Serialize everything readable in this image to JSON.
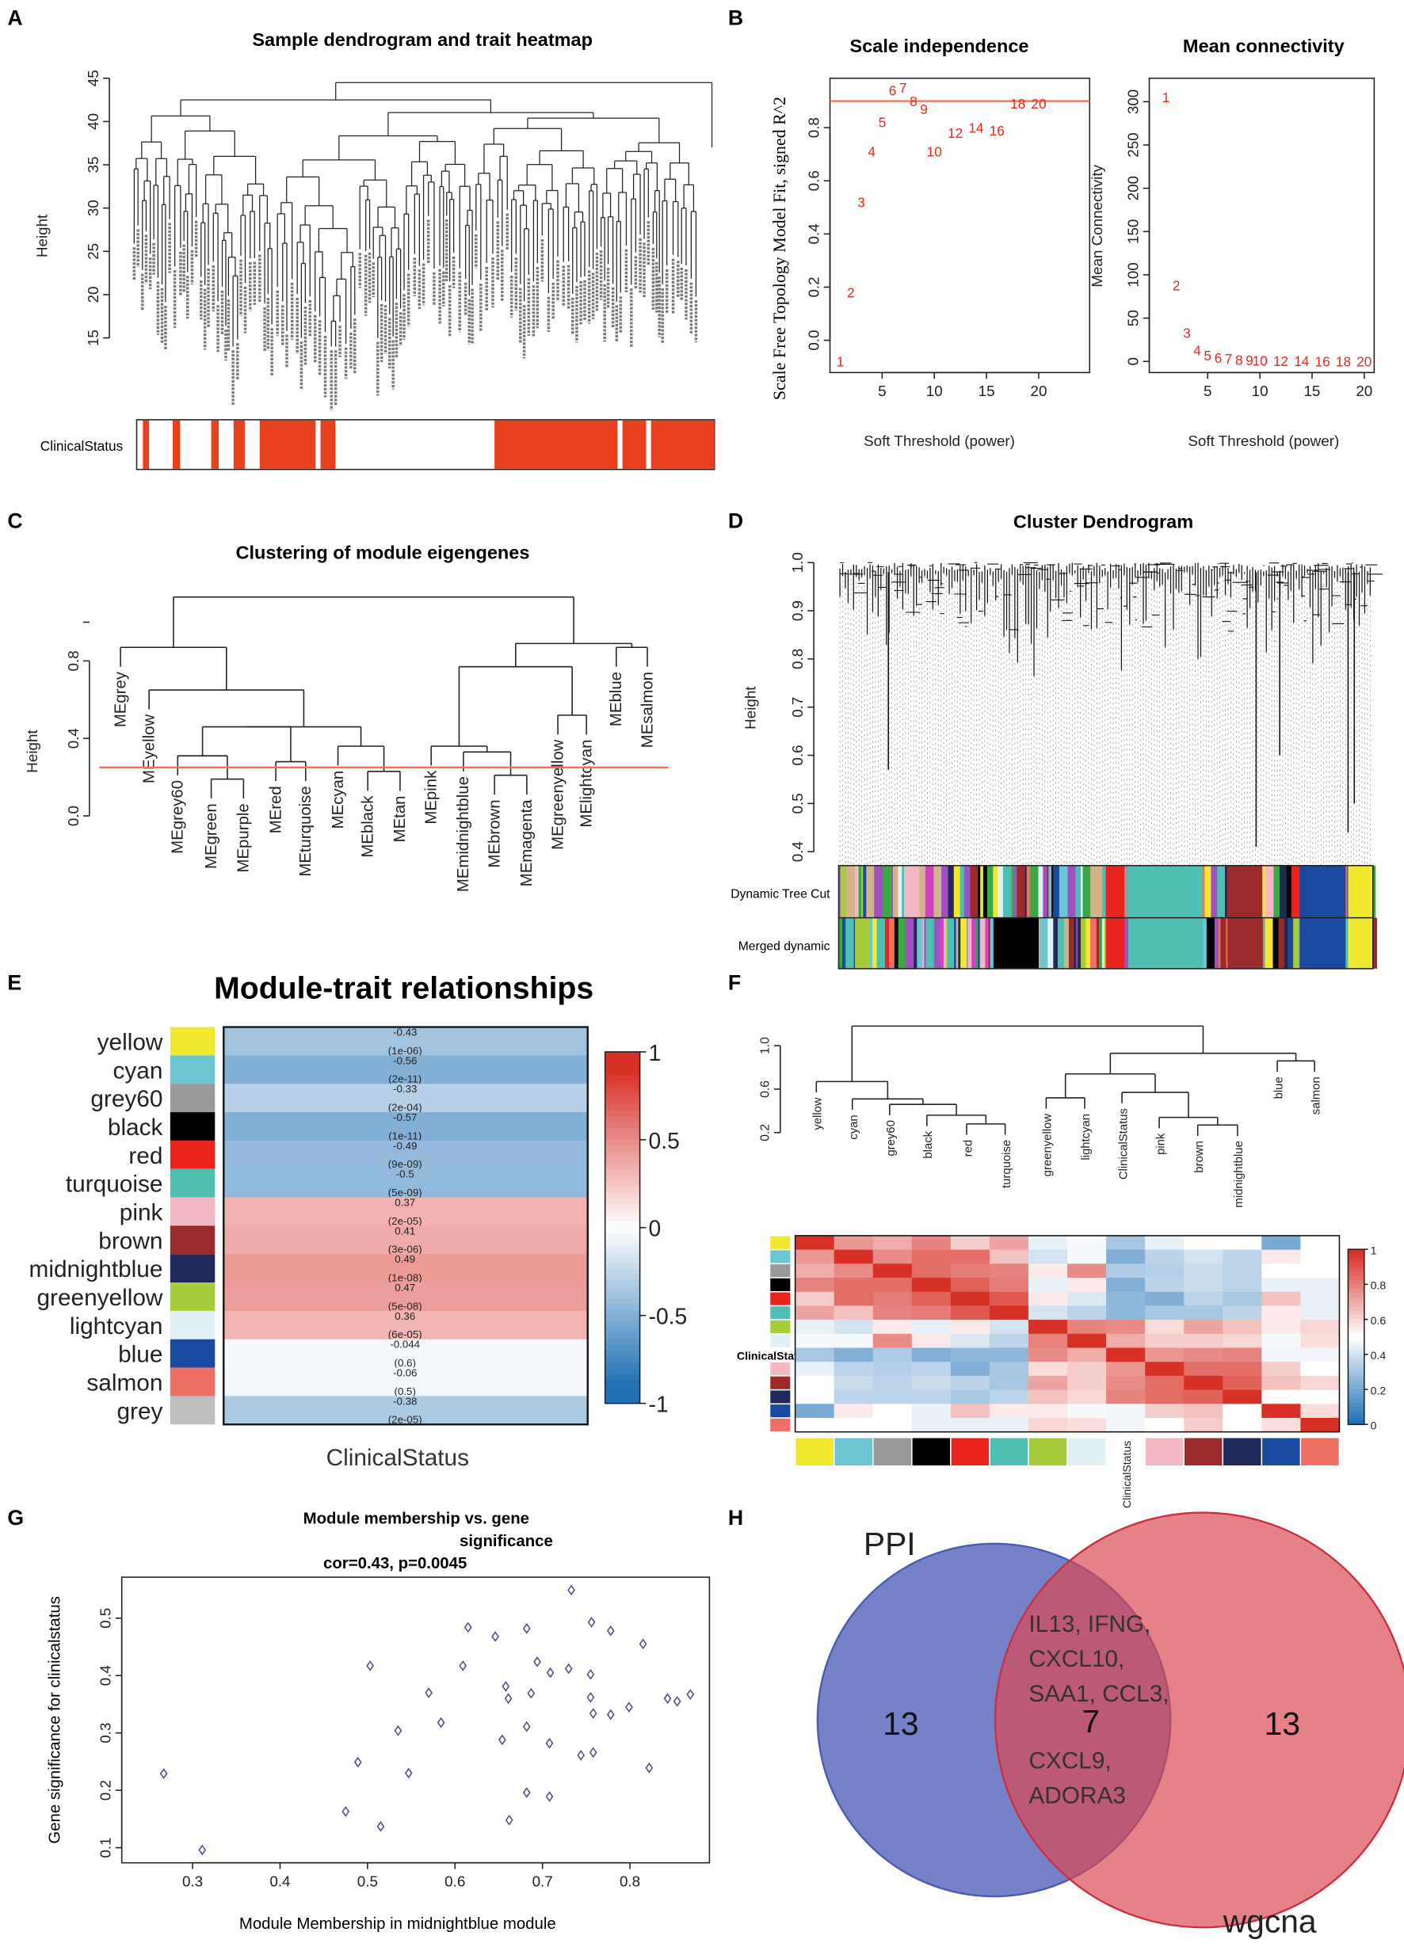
{
  "panel_labels": [
    "A",
    "B",
    "C",
    "D",
    "E",
    "F",
    "G",
    "H"
  ],
  "colors": {
    "yellow": "#f2e830",
    "cyan": "#6cc5d3",
    "grey60": "#999999",
    "black": "#000000",
    "red": "#e8241c",
    "turquoise": "#4fbfb4",
    "pink": "#f4b8c4",
    "brown": "#9b2a2a",
    "midnightblue": "#1f2a5a",
    "greenyellow": "#a7cc3a",
    "lightcyan": "#dff1f5",
    "blue": "#1a4aa0",
    "salmon": "#ee6f64",
    "grey": "#bebebe",
    "green": "#3aa845",
    "purple": "#a050c0",
    "tan": "#d2b48c",
    "magenta": "#d040c0",
    "trait_red": "#e8401c",
    "threshold_line": "#f07050",
    "scatter_point": "#5a4b8a"
  },
  "chart_data": [
    {
      "panel": "A",
      "type": "dendrogram",
      "title": "Sample dendrogram and trait heatmap",
      "ylabel": "Height",
      "ylim": [
        15,
        45
      ],
      "yticks": [
        15,
        20,
        25,
        30,
        35,
        40,
        45
      ],
      "trait_label": "ClinicalStatus"
    },
    {
      "panel": "B1",
      "type": "scatter",
      "title": "Scale independence",
      "xlabel": "Soft Threshold (power)",
      "ylabel": "Scale Free Topology Model Fit, signed R^2",
      "xticks": [
        5,
        10,
        15,
        20
      ],
      "yticks": [
        0.0,
        0.2,
        0.4,
        0.6,
        0.8
      ],
      "threshold": 0.9,
      "x": [
        1,
        2,
        3,
        4,
        5,
        6,
        7,
        8,
        9,
        10,
        12,
        14,
        16,
        18,
        20
      ],
      "y": [
        -0.08,
        0.18,
        0.52,
        0.71,
        0.82,
        0.94,
        0.95,
        0.9,
        0.87,
        0.71,
        0.78,
        0.8,
        0.79,
        0.89,
        0.89
      ]
    },
    {
      "panel": "B2",
      "type": "scatter",
      "title": "Mean connectivity",
      "xlabel": "Soft Threshold (power)",
      "ylabel": "Mean Connectivity",
      "xticks": [
        5,
        10,
        15,
        20
      ],
      "yticks": [
        0,
        50,
        100,
        150,
        200,
        250,
        300
      ],
      "x": [
        1,
        2,
        3,
        4,
        5,
        6,
        7,
        8,
        9,
        10,
        12,
        14,
        16,
        18,
        20
      ],
      "y": [
        305,
        88,
        33,
        13,
        7,
        4,
        3,
        2,
        1.5,
        1,
        0.5,
        0.3,
        0.2,
        0.1,
        0.1
      ]
    },
    {
      "panel": "C",
      "type": "dendrogram",
      "title": "Clustering of module eigengenes",
      "ylabel": "Height",
      "yticks": [
        0.0,
        0.4,
        0.8
      ],
      "cut_height": 0.25,
      "leaves": [
        "MEgrey",
        "MEyellow",
        "MEgrey60",
        "MEgreen",
        "MEpurple",
        "MEred",
        "MEturquoise",
        "MEcyan",
        "MEblack",
        "MEtan",
        "MEpink",
        "MEmidnightblue",
        "MEbrown",
        "MEmagenta",
        "MEgreenyellow",
        "MElightcyan",
        "MEblue",
        "MEsalmon"
      ],
      "merges": [
        [
          -4,
          -5,
          0.19
        ],
        [
          -3,
          1,
          0.31
        ],
        [
          -6,
          -7,
          0.28
        ],
        [
          -9,
          -10,
          0.23
        ],
        [
          -8,
          4,
          0.36
        ],
        [
          2,
          3,
          0.46
        ],
        [
          6,
          5,
          0.46
        ],
        [
          -2,
          7,
          0.65
        ],
        [
          -1,
          8,
          0.87
        ],
        [
          -13,
          -14,
          0.21
        ],
        [
          -12,
          10,
          0.33
        ],
        [
          -11,
          11,
          0.36
        ],
        [
          -15,
          -16,
          0.52
        ],
        [
          12,
          13,
          0.77
        ],
        [
          -17,
          -18,
          0.87
        ],
        [
          14,
          15,
          0.89
        ],
        [
          9,
          16,
          1.13
        ]
      ]
    },
    {
      "panel": "D",
      "type": "dendrogram",
      "title": "Cluster Dendrogram",
      "ylabel": "Height",
      "yticks": [
        0.4,
        0.5,
        0.6,
        0.7,
        0.8,
        0.9,
        1.0
      ],
      "bar_labels": [
        "Dynamic Tree Cut",
        "Merged dynamic"
      ]
    },
    {
      "panel": "E",
      "type": "heatmap",
      "title": "Module-trait relationships",
      "xlabel": "ClinicalStatus",
      "rows": [
        "yellow",
        "cyan",
        "grey60",
        "black",
        "red",
        "turquoise",
        "pink",
        "brown",
        "midnightblue",
        "greenyellow",
        "lightcyan",
        "blue",
        "salmon",
        "grey"
      ],
      "cor": [
        -0.43,
        -0.56,
        -0.33,
        -0.57,
        -0.49,
        -0.5,
        0.37,
        0.41,
        0.49,
        0.47,
        0.36,
        -0.044,
        -0.06,
        -0.38
      ],
      "cor_labels": [
        "-0.43",
        "-0.56",
        "-0.33",
        "-0.57",
        "-0.49",
        "-0.5",
        "0.37",
        "0.41",
        "0.49",
        "0.47",
        "0.36",
        "-0.044",
        "-0.06",
        "-0.38"
      ],
      "p_labels": [
        "(1e-06)",
        "(2e-11)",
        "(2e-04)",
        "(1e-11)",
        "(9e-09)",
        "(5e-09)",
        "(2e-05)",
        "(3e-06)",
        "(1e-08)",
        "(5e-08)",
        "(6e-05)",
        "(0.6)",
        "(0.5)",
        "(2e-05)"
      ],
      "colorbar_ticks": [
        "1",
        "0.5",
        "0",
        "-0.5",
        "-1"
      ]
    },
    {
      "panel": "F",
      "type": "heatmap",
      "yticks": [
        0.2,
        0.6,
        1.0
      ],
      "leaves": [
        "yellow",
        "cyan",
        "grey60",
        "black",
        "red",
        "turquoise",
        "greenyellow",
        "lightcyan",
        "ClinicalStatus",
        "pink",
        "brown",
        "midnightblue",
        "blue",
        "salmon"
      ],
      "merges": [
        [
          -5,
          -6,
          0.28
        ],
        [
          -4,
          1,
          0.36
        ],
        [
          -3,
          2,
          0.46
        ],
        [
          -2,
          3,
          0.51
        ],
        [
          -1,
          4,
          0.67
        ],
        [
          -7,
          -8,
          0.52
        ],
        [
          -11,
          -12,
          0.27
        ],
        [
          -10,
          7,
          0.34
        ],
        [
          -9,
          8,
          0.57
        ],
        [
          6,
          9,
          0.74
        ],
        [
          -13,
          -14,
          0.86
        ],
        [
          10,
          11,
          0.93
        ],
        [
          5,
          12,
          1.18
        ]
      ],
      "row_label": "ClinicalStatus",
      "colorbar_ticks": [
        "1",
        "0.8",
        "0.6",
        "0.4",
        "0.2",
        "0"
      ],
      "matrix": [
        [
          1,
          0.75,
          0.7,
          0.8,
          0.62,
          0.72,
          0.45,
          0.48,
          0.3,
          0.45,
          0.5,
          0.5,
          0.2,
          0.5
        ],
        [
          0.75,
          1,
          0.78,
          0.85,
          0.85,
          0.65,
          0.4,
          0.48,
          0.22,
          0.35,
          0.4,
          0.35,
          0.55,
          0.5
        ],
        [
          0.7,
          0.78,
          1,
          0.85,
          0.82,
          0.8,
          0.55,
          0.78,
          0.32,
          0.33,
          0.38,
          0.35,
          0.5,
          0.5
        ],
        [
          0.8,
          0.85,
          0.85,
          1,
          0.88,
          0.82,
          0.45,
          0.55,
          0.22,
          0.35,
          0.38,
          0.35,
          0.45,
          0.45
        ],
        [
          0.62,
          0.85,
          0.82,
          0.88,
          1,
          0.9,
          0.55,
          0.42,
          0.25,
          0.22,
          0.35,
          0.3,
          0.65,
          0.45
        ],
        [
          0.72,
          0.65,
          0.8,
          0.82,
          0.9,
          1,
          0.4,
          0.35,
          0.25,
          0.3,
          0.3,
          0.35,
          0.55,
          0.45
        ],
        [
          0.45,
          0.4,
          0.55,
          0.45,
          0.55,
          0.4,
          1,
          0.8,
          0.78,
          0.58,
          0.72,
          0.65,
          0.55,
          0.6
        ],
        [
          0.48,
          0.48,
          0.78,
          0.55,
          0.42,
          0.35,
          0.8,
          1,
          0.7,
          0.62,
          0.62,
          0.6,
          0.48,
          0.58
        ],
        [
          0.3,
          0.22,
          0.32,
          0.22,
          0.25,
          0.25,
          0.78,
          0.7,
          1,
          0.75,
          0.78,
          0.8,
          0.47,
          0.47
        ],
        [
          0.45,
          0.35,
          0.33,
          0.35,
          0.22,
          0.3,
          0.58,
          0.62,
          0.75,
          1,
          0.85,
          0.85,
          0.62,
          0.5
        ],
        [
          0.5,
          0.38,
          0.35,
          0.38,
          0.35,
          0.3,
          0.72,
          0.62,
          0.78,
          0.85,
          1,
          0.88,
          0.65,
          0.6
        ],
        [
          0.5,
          0.35,
          0.35,
          0.35,
          0.3,
          0.35,
          0.65,
          0.6,
          0.8,
          0.85,
          0.88,
          1,
          0.5,
          0.5
        ],
        [
          0.2,
          0.55,
          0.5,
          0.45,
          0.65,
          0.55,
          0.55,
          0.48,
          0.47,
          0.62,
          0.65,
          0.5,
          1,
          0.58
        ],
        [
          0.5,
          0.5,
          0.5,
          0.45,
          0.45,
          0.45,
          0.6,
          0.58,
          0.47,
          0.5,
          0.62,
          0.5,
          0.58,
          1
        ]
      ]
    },
    {
      "panel": "G",
      "type": "scatter",
      "title_lines": [
        "Module membership vs. gene",
        "significance",
        "cor=0.43, p=0.0045"
      ],
      "xlabel": "Module Membership in midnightblue module",
      "ylabel": "Gene significance for clinicalstatus",
      "xticks": [
        "0.3",
        "0.4",
        "0.5",
        "0.6",
        "0.7",
        "0.8"
      ],
      "yticks": [
        "0.1",
        "0.2",
        "0.3",
        "0.4",
        "0.5"
      ],
      "points": [
        [
          0.267,
          0.229
        ],
        [
          0.311,
          0.096
        ],
        [
          0.503,
          0.417
        ],
        [
          0.489,
          0.249
        ],
        [
          0.475,
          0.163
        ],
        [
          0.515,
          0.137
        ],
        [
          0.535,
          0.304
        ],
        [
          0.547,
          0.23
        ],
        [
          0.57,
          0.37
        ],
        [
          0.584,
          0.318
        ],
        [
          0.609,
          0.417
        ],
        [
          0.615,
          0.484
        ],
        [
          0.646,
          0.468
        ],
        [
          0.658,
          0.381
        ],
        [
          0.661,
          0.36
        ],
        [
          0.654,
          0.288
        ],
        [
          0.662,
          0.148
        ],
        [
          0.682,
          0.482
        ],
        [
          0.682,
          0.311
        ],
        [
          0.682,
          0.196
        ],
        [
          0.687,
          0.369
        ],
        [
          0.694,
          0.424
        ],
        [
          0.709,
          0.405
        ],
        [
          0.708,
          0.282
        ],
        [
          0.708,
          0.189
        ],
        [
          0.73,
          0.412
        ],
        [
          0.733,
          0.549
        ],
        [
          0.744,
          0.261
        ],
        [
          0.755,
          0.402
        ],
        [
          0.756,
          0.493
        ],
        [
          0.755,
          0.362
        ],
        [
          0.758,
          0.334
        ],
        [
          0.758,
          0.266
        ],
        [
          0.778,
          0.478
        ],
        [
          0.778,
          0.332
        ],
        [
          0.799,
          0.345
        ],
        [
          0.815,
          0.455
        ],
        [
          0.822,
          0.239
        ],
        [
          0.843,
          0.36
        ],
        [
          0.854,
          0.355
        ],
        [
          0.869,
          0.367
        ]
      ]
    },
    {
      "panel": "H",
      "type": "venn",
      "sets": [
        "PPI",
        "wgcna"
      ],
      "left_only": "13",
      "right_only": "13",
      "intersection": "7",
      "intersection_genes": [
        "IL13, IFNG,",
        "CXCL10,",
        "SAA1, CCL3,",
        "CXCL9,",
        "ADORA3"
      ]
    }
  ]
}
